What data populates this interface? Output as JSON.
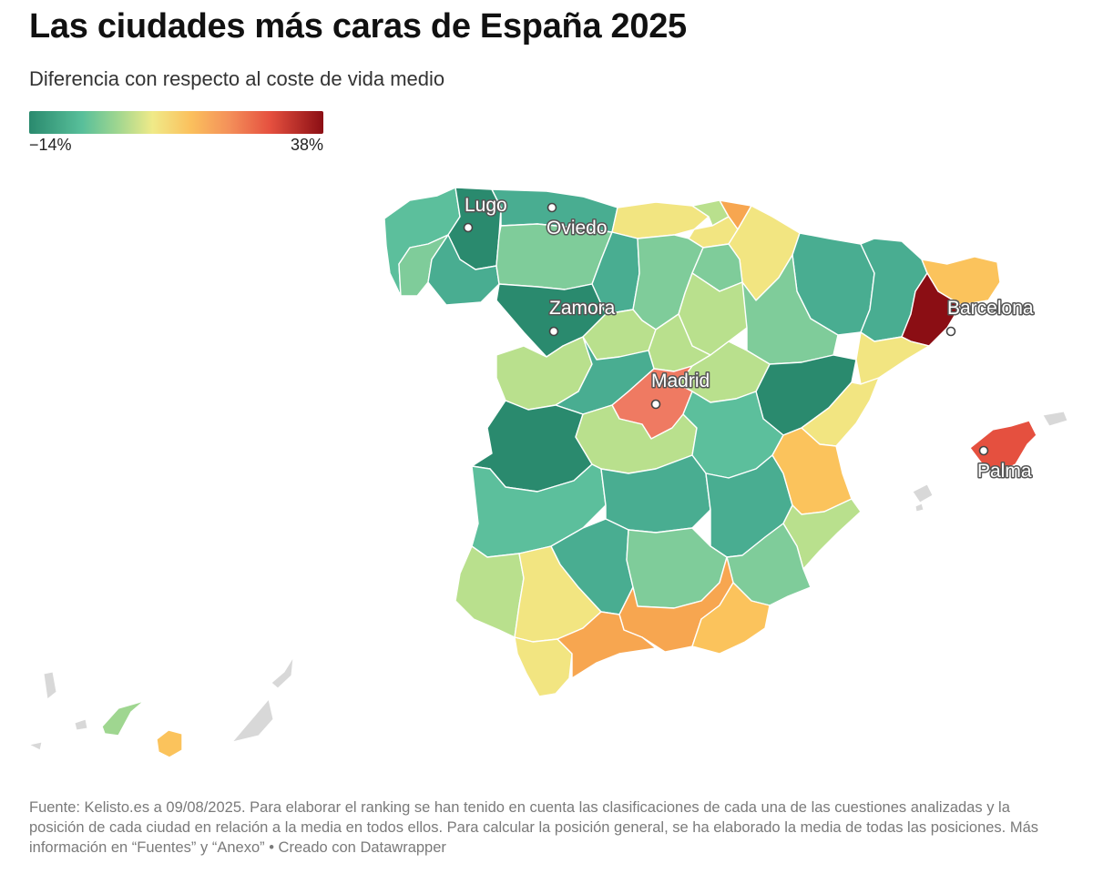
{
  "header": {
    "title": "Las ciudades más caras de España 2025",
    "subtitle": "Diferencia con respecto al coste de vida medio"
  },
  "legend": {
    "min_label": "−14%",
    "max_label": "38%",
    "colors": [
      "#2a8a6e",
      "#58bf9a",
      "#9fd690",
      "#f0ea88",
      "#fbc05d",
      "#f4905a",
      "#e5503f",
      "#8b0e14"
    ]
  },
  "map": {
    "cities": [
      {
        "name": "Lugo"
      },
      {
        "name": "Oviedo"
      },
      {
        "name": "Zamora"
      },
      {
        "name": "Madrid"
      },
      {
        "name": "Barcelona"
      },
      {
        "name": "Palma"
      }
    ],
    "colors": {
      "dark_green": "#2a8a6e",
      "teal": "#49ad91",
      "mid_green": "#5cbf9c",
      "light_green": "#7fcc9a",
      "yellow_green": "#b9e08d",
      "yellow": "#f2e581",
      "light_orange": "#fbc35c",
      "orange": "#f7a650",
      "salmon": "#ef7a62",
      "red": "#e5503f",
      "dark_red": "#8b0e14",
      "no_data": "#d8d8d8"
    }
  },
  "footer": {
    "source": "Fuente: Kelisto.es a 09/08/2025. Para elaborar el ranking se han tenido en cuenta las clasificaciones de cada una de las cuestiones analizadas y la posición de cada ciudad en relación a la media en todos ellos. Para calcular la posición general, se ha elaborado la media de todas las posiciones. Más información en “Fuentes” y “Anexo” • Creado con Datawrapper"
  }
}
